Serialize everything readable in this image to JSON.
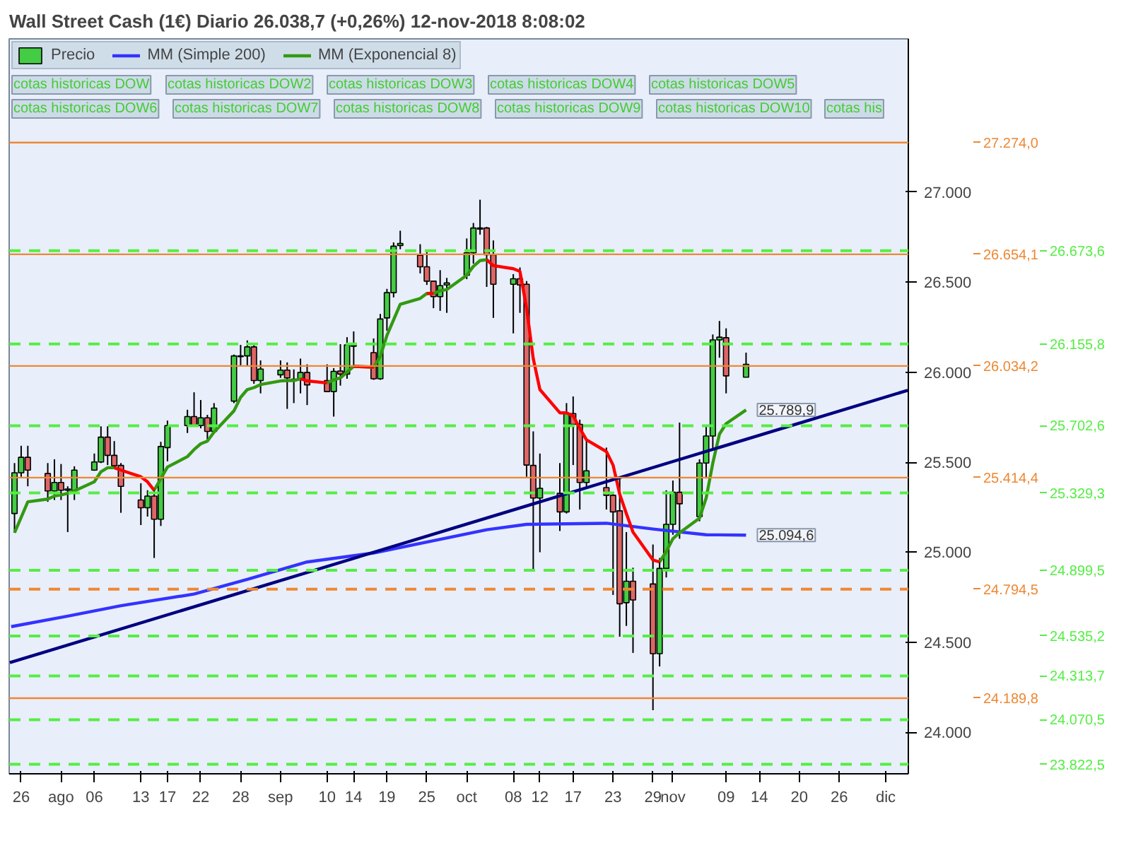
{
  "chart_data": {
    "type": "candlestick",
    "title": "Wall Street Cash (1€)    Diario    26.038,7 (+0,26%)    12-nov-2018 8:08:02",
    "x": [
      "2018-07-25",
      "2018-07-26",
      "2018-07-27",
      "2018-07-30",
      "2018-07-31",
      "2018-08-01",
      "2018-08-02",
      "2018-08-03",
      "2018-08-06",
      "2018-08-07",
      "2018-08-08",
      "2018-08-09",
      "2018-08-10",
      "2018-08-13",
      "2018-08-14",
      "2018-08-15",
      "2018-08-16",
      "2018-08-17",
      "2018-08-20",
      "2018-08-21",
      "2018-08-22",
      "2018-08-23",
      "2018-08-24",
      "2018-08-27",
      "2018-08-28",
      "2018-08-29",
      "2018-08-30",
      "2018-08-31",
      "2018-09-03",
      "2018-09-04",
      "2018-09-05",
      "2018-09-06",
      "2018-09-07",
      "2018-09-10",
      "2018-09-11",
      "2018-09-12",
      "2018-09-13",
      "2018-09-14",
      "2018-09-17",
      "2018-09-18",
      "2018-09-19",
      "2018-09-20",
      "2018-09-21",
      "2018-09-24",
      "2018-09-25",
      "2018-09-26",
      "2018-09-27",
      "2018-09-28",
      "2018-10-01",
      "2018-10-02",
      "2018-10-03",
      "2018-10-04",
      "2018-10-05",
      "2018-10-08",
      "2018-10-09",
      "2018-10-10",
      "2018-10-11",
      "2018-10-12",
      "2018-10-15",
      "2018-10-16",
      "2018-10-17",
      "2018-10-18",
      "2018-10-19",
      "2018-10-22",
      "2018-10-23",
      "2018-10-24",
      "2018-10-25",
      "2018-10-26",
      "2018-10-29",
      "2018-10-30",
      "2018-10-31",
      "2018-11-01",
      "2018-11-02",
      "2018-11-05",
      "2018-11-06",
      "2018-11-07",
      "2018-11-08",
      "2018-11-09",
      "2018-11-12"
    ],
    "xlim": [
      "2018-07-24T04:48",
      "2018-12-06T09:36"
    ],
    "xticks": [
      {
        "value": "2018-07-26",
        "label": "26"
      },
      {
        "value": "2018-08-01",
        "label": "ago"
      },
      {
        "value": "2018-08-06",
        "label": "06"
      },
      {
        "value": "2018-08-13",
        "label": "13"
      },
      {
        "value": "2018-08-17",
        "label": "17"
      },
      {
        "value": "2018-08-22",
        "label": "22"
      },
      {
        "value": "2018-08-28",
        "label": "28"
      },
      {
        "value": "2018-09-03",
        "label": "sep"
      },
      {
        "value": "2018-09-10",
        "label": "10"
      },
      {
        "value": "2018-09-14",
        "label": "14"
      },
      {
        "value": "2018-09-19",
        "label": "19"
      },
      {
        "value": "2018-09-25",
        "label": "25"
      },
      {
        "value": "2018-10-01",
        "label": "oct"
      },
      {
        "value": "2018-10-08",
        "label": "08"
      },
      {
        "value": "2018-10-12",
        "label": "12"
      },
      {
        "value": "2018-10-17",
        "label": "17"
      },
      {
        "value": "2018-10-23",
        "label": "23"
      },
      {
        "value": "2018-10-29",
        "label": "29"
      },
      {
        "value": "2018-11-01",
        "label": "nov"
      },
      {
        "value": "2018-11-09",
        "label": "09"
      },
      {
        "value": "2018-11-14",
        "label": "14"
      },
      {
        "value": "2018-11-20",
        "label": "20"
      },
      {
        "value": "2018-11-26",
        "label": "26"
      },
      {
        "value": "2018-12-03",
        "label": "dic"
      }
    ],
    "ylim": [
      23770,
      27850
    ],
    "yticks": [
      {
        "value": 24000,
        "label": "24.000"
      },
      {
        "value": 24500,
        "label": "24.500"
      },
      {
        "value": 25000,
        "label": "25.000"
      },
      {
        "value": 25500,
        "label": "25.500"
      },
      {
        "value": 26000,
        "label": "26.000"
      },
      {
        "value": 26500,
        "label": "26.500"
      },
      {
        "value": 27000,
        "label": "27.000"
      }
    ],
    "legend": "top left",
    "series": [
      {
        "name": "Precio",
        "ohlc": [
          [
            25215,
            25495,
            25108,
            25441
          ],
          [
            25441,
            25591,
            25419,
            25527
          ],
          [
            25527,
            25591,
            25366,
            25456
          ],
          [
            25437,
            25495,
            25280,
            25340
          ],
          [
            25340,
            25516,
            25290,
            25387
          ],
          [
            25387,
            25490,
            25290,
            25344
          ],
          [
            25344,
            25366,
            25112,
            25351
          ],
          [
            25344,
            25477,
            25290,
            25456
          ],
          [
            25456,
            25548,
            25452,
            25501
          ],
          [
            25501,
            25699,
            25495,
            25639
          ],
          [
            25639,
            25699,
            25484,
            25538
          ],
          [
            25538,
            25617,
            25469,
            25480
          ],
          [
            25482,
            25495,
            25219,
            25366
          ],
          [
            25290,
            25383,
            25151,
            25247
          ],
          [
            25247,
            25344,
            25198,
            25312
          ],
          [
            25312,
            25344,
            24968,
            25183
          ],
          [
            25183,
            25613,
            25146,
            25587
          ],
          [
            25581,
            25731,
            25505,
            25703
          ],
          [
            25703,
            25791,
            25662,
            25753
          ],
          [
            25753,
            25888,
            25699,
            25705
          ],
          [
            25703,
            25845,
            25688,
            25746
          ],
          [
            25746,
            25763,
            25624,
            25671
          ],
          [
            25671,
            25828,
            25662,
            25800
          ],
          [
            25839,
            26097,
            25828,
            26090
          ],
          [
            26086,
            26151,
            26037,
            26090
          ],
          [
            26090,
            26176,
            26037,
            26140
          ],
          [
            26140,
            26151,
            25935,
            25953
          ],
          [
            25953,
            26065,
            25882,
            26017
          ],
          [
            25985,
            26065,
            25968,
            26011
          ],
          [
            26011,
            26054,
            25796,
            25968
          ],
          [
            25953,
            26015,
            25828,
            25961
          ],
          [
            25963,
            26075,
            25882,
            25998
          ],
          [
            25998,
            26043,
            25817,
            25929
          ],
          [
            25953,
            26043,
            25892,
            25892
          ],
          [
            25892,
            26022,
            25753,
            26004
          ],
          [
            26006,
            26155,
            25925,
            25989
          ],
          [
            25989,
            26194,
            25963,
            26151
          ],
          [
            26144,
            26226,
            26028,
            26151
          ],
          [
            26108,
            26187,
            25957,
            25963
          ],
          [
            25963,
            26323,
            25957,
            26295
          ],
          [
            26301,
            26462,
            26230,
            26441
          ],
          [
            26441,
            26720,
            26415,
            26699
          ],
          [
            26703,
            26785,
            26682,
            26714
          ],
          [
            26649,
            26710,
            26548,
            26585
          ],
          [
            26585,
            26667,
            26484,
            26505
          ],
          [
            26505,
            26505,
            26355,
            26419
          ],
          [
            26419,
            26566,
            26340,
            26480
          ],
          [
            26484,
            26523,
            26329,
            26495
          ],
          [
            26538,
            26742,
            26516,
            26662
          ],
          [
            26662,
            26828,
            26602,
            26800
          ],
          [
            26794,
            26957,
            26763,
            26800
          ],
          [
            26800,
            26806,
            26473,
            26652
          ],
          [
            26652,
            26731,
            26301,
            26488
          ],
          [
            26488,
            26544,
            26215,
            26518
          ],
          [
            26518,
            26581,
            26329,
            26484
          ],
          [
            26488,
            26505,
            25419,
            25484
          ],
          [
            25482,
            25671,
            24893,
            25301
          ],
          [
            25301,
            25548,
            25000,
            25355
          ],
          [
            25327,
            25495,
            25118,
            25224
          ],
          [
            25224,
            25828,
            25215,
            25770
          ],
          [
            25770,
            25865,
            25484,
            25710
          ],
          [
            25710,
            25736,
            25237,
            25387
          ],
          [
            25387,
            25624,
            25355,
            25452
          ],
          [
            25359,
            25581,
            25237,
            25316
          ],
          [
            25316,
            25323,
            24763,
            25224
          ],
          [
            25230,
            25409,
            24531,
            24714
          ],
          [
            24720,
            25112,
            24591,
            24839
          ],
          [
            24839,
            24914,
            24441,
            24735
          ],
          [
            24824,
            25043,
            24123,
            24437
          ],
          [
            24437,
            24968,
            24366,
            24910
          ],
          [
            24910,
            25344,
            24860,
            25155
          ],
          [
            25155,
            25398,
            25097,
            25333
          ],
          [
            25333,
            25720,
            25075,
            25269
          ],
          [
            25198,
            25516,
            25172,
            25495
          ],
          [
            25495,
            25699,
            25409,
            25645
          ],
          [
            25645,
            26209,
            25570,
            26179
          ],
          [
            26179,
            26284,
            26080,
            26194
          ],
          [
            26191,
            26243,
            25882,
            25979
          ],
          [
            25972,
            26108,
            25972,
            26043
          ]
        ],
        "colors": [
          "#44cc44",
          "#44cc44",
          "#dd6666",
          "#dd6666",
          "#44cc44",
          "#dd6666",
          "#44cc44",
          "#44cc44",
          "#44cc44",
          "#44cc44",
          "#dd6666",
          "#dd6666",
          "#dd6666",
          "#dd6666",
          "#44cc44",
          "#dd6666",
          "#44cc44",
          "#44cc44",
          "#44cc44",
          "#dd6666",
          "#44cc44",
          "#dd6666",
          "#44cc44",
          "#44cc44",
          "#44cc44",
          "#44cc44",
          "#dd6666",
          "#44cc44",
          "#44cc44",
          "#dd6666",
          "#44cc44",
          "#44cc44",
          "#dd6666",
          "#dd6666",
          "#44cc44",
          "#dd6666",
          "#44cc44",
          "#44cc44",
          "#dd6666",
          "#44cc44",
          "#44cc44",
          "#44cc44",
          "#44cc44",
          "#dd6666",
          "#dd6666",
          "#dd6666",
          "#44cc44",
          "#44cc44",
          "#44cc44",
          "#44cc44",
          "#44cc44",
          "#dd6666",
          "#dd6666",
          "#44cc44",
          "#dd6666",
          "#dd6666",
          "#dd6666",
          "#44cc44",
          "#dd6666",
          "#44cc44",
          "#dd6666",
          "#dd6666",
          "#44cc44",
          "#dd6666",
          "#dd6666",
          "#dd6666",
          "#44cc44",
          "#dd6666",
          "#dd6666",
          "#44cc44",
          "#44cc44",
          "#44cc44",
          "#dd6666",
          "#44cc44",
          "#44cc44",
          "#44cc44",
          "#44cc44",
          "#dd6666",
          "#44cc44"
        ]
      },
      {
        "name": "MM (Simple 200)",
        "type": "line",
        "color": "#3333ff",
        "x": [
          "2018-07-24T12:00",
          "2018-08-02",
          "2018-08-10",
          "2018-08-21",
          "2018-08-29",
          "2018-09-07",
          "2018-09-17",
          "2018-09-26",
          "2018-10-04",
          "2018-10-10",
          "2018-10-22",
          "2018-10-29",
          "2018-11-06",
          "2018-11-12"
        ],
        "values": [
          24587,
          24645,
          24703,
          24768,
          24849,
          24946,
          24996,
          25064,
          25125,
          25155,
          25161,
          25129,
          25097,
          25095
        ]
      },
      {
        "name": "MM (Exponencial 8)",
        "type": "line",
        "color": "#339911",
        "values": [
          25108,
          25194,
          25280,
          25295,
          25312,
          25318,
          25327,
          25340,
          25391,
          25447,
          25469,
          25469,
          null,
          null,
          null,
          25344,
          25409,
          25473,
          25531,
          25570,
          25602,
          25617,
          25667,
          25785,
          25860,
          25903,
          25914,
          25931,
          25951,
          25953,
          25953,
          25963,
          null,
          25940,
          25957,
          25968,
          26000,
          26032,
          26028,
          26086,
          26204,
          26290,
          26376,
          26409,
          26437,
          26437,
          26452,
          26458,
          26538,
          26587,
          26619,
          26624,
          null,
          null,
          null,
          null,
          null,
          null,
          null,
          null,
          null,
          null,
          null,
          null,
          null,
          null,
          null,
          null,
          null,
          24946,
          25004,
          25075,
          25108,
          25189,
          25301,
          25495,
          25656,
          25714,
          25790
        ]
      },
      {
        "type": "line",
        "color": "#ff0000",
        "values": [
          null,
          null,
          null,
          null,
          null,
          null,
          null,
          null,
          null,
          null,
          null,
          25469,
          25456,
          25419,
          25391,
          25344,
          null,
          null,
          null,
          null,
          null,
          null,
          null,
          null,
          null,
          null,
          null,
          null,
          null,
          null,
          null,
          25963,
          25951,
          25940,
          null,
          null,
          null,
          26032,
          26028,
          null,
          null,
          null,
          null,
          null,
          26437,
          26437,
          null,
          null,
          null,
          null,
          null,
          26624,
          26591,
          26574,
          26559,
          26355,
          26075,
          25903,
          25774,
          25774,
          25757,
          25688,
          25624,
          25559,
          25484,
          25323,
          25215,
          25112,
          24957,
          24946,
          null,
          null,
          null,
          null,
          null,
          null,
          null,
          null,
          null
        ]
      },
      {
        "type": "line",
        "color": "#000080",
        "x": [
          "2018-07-24T07:12",
          "2018-12-06T07:12"
        ],
        "values": [
          24387,
          25899
        ]
      }
    ],
    "ref_lines": [
      {
        "axis": "y",
        "value": 27274.0,
        "label": "27.274,0",
        "color": "#ee8833",
        "line_style": "solid"
      },
      {
        "axis": "y",
        "value": 26673.6,
        "label": "26.673,6",
        "color": "#55ee44",
        "line_style": "dashed"
      },
      {
        "axis": "y",
        "value": 26654.1,
        "label": "26.654,1",
        "color": "#ee8833",
        "line_style": "solid"
      },
      {
        "axis": "y",
        "value": 26155.8,
        "label": "26.155,8",
        "color": "#55ee44",
        "line_style": "dashed"
      },
      {
        "axis": "y",
        "value": 26034.2,
        "label": "26.034,2",
        "color": "#ee8833",
        "line_style": "solid"
      },
      {
        "axis": "y",
        "value": 25702.6,
        "label": "25.702,6",
        "color": "#55ee44",
        "line_style": "dashed"
      },
      {
        "axis": "y",
        "value": 25414.4,
        "label": "25.414,4",
        "color": "#ee8833",
        "line_style": "solid"
      },
      {
        "axis": "y",
        "value": 25329.3,
        "label": "25.329,3",
        "color": "#55ee44",
        "line_style": "dashed"
      },
      {
        "axis": "y",
        "value": 24899.5,
        "label": "24.899,5",
        "color": "#55ee44",
        "line_style": "dashed"
      },
      {
        "axis": "y",
        "value": 24794.5,
        "label": "24.794,5",
        "color": "#ee8833",
        "line_style": "dashed"
      },
      {
        "axis": "y",
        "value": 24535.2,
        "label": "24.535,2",
        "color": "#55ee44",
        "line_style": "dashed"
      },
      {
        "axis": "y",
        "value": 24313.7,
        "label": "24.313,7",
        "color": "#55ee44",
        "line_style": "dashed"
      },
      {
        "axis": "y",
        "value": 24189.8,
        "label": "24.189,8",
        "color": "#ee8833",
        "line_style": "solid"
      },
      {
        "axis": "y",
        "value": 24070.5,
        "label": "24.070,5",
        "color": "#55ee44",
        "line_style": "dashed"
      },
      {
        "axis": "y",
        "value": 23822.5,
        "label": "23.822,5",
        "color": "#55ee44",
        "line_style": "dashed"
      }
    ],
    "annotations": [
      "cotas historicas DOW",
      "cotas historicas DOW2",
      "cotas historicas DOW3",
      "cotas historicas DOW4",
      "cotas historicas DOW5",
      "cotas historicas DOW6",
      "cotas historicas DOW7",
      "cotas historicas DOW8",
      "cotas historicas DOW9",
      "cotas historicas DOW10",
      "cotas his",
      {
        "text": "25.789,9",
        "x": "2018-11-12",
        "y": 25789.9
      },
      {
        "text": "25.094,6",
        "x": "2018-11-12",
        "y": 25094.6
      }
    ]
  }
}
